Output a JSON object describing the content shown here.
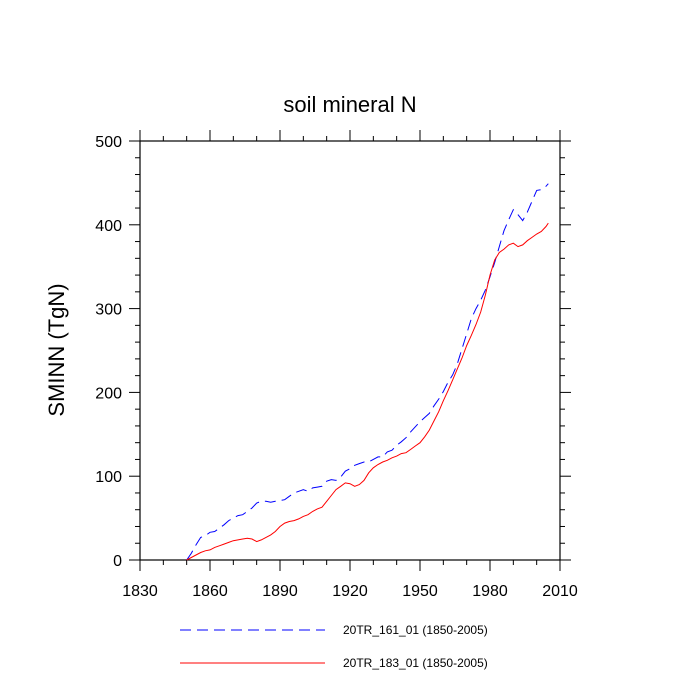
{
  "chart_data": {
    "type": "line",
    "title": "soil mineral N",
    "xlabel": "",
    "ylabel": "SMINN  (TgN)",
    "xlim": [
      1830,
      2010
    ],
    "ylim": [
      0,
      500
    ],
    "xticks": [
      1830,
      1860,
      1890,
      1920,
      1950,
      1980,
      2010
    ],
    "yticks": [
      0,
      100,
      200,
      300,
      400,
      500
    ],
    "series": [
      {
        "name": "20TR_161_01 (1850-2005)",
        "color": "#0000ff",
        "dash": "dashed",
        "x": [
          1850,
          1852,
          1854,
          1856,
          1858,
          1860,
          1862,
          1864,
          1866,
          1868,
          1870,
          1872,
          1874,
          1876,
          1878,
          1880,
          1882,
          1884,
          1886,
          1888,
          1890,
          1892,
          1894,
          1896,
          1898,
          1900,
          1902,
          1904,
          1906,
          1908,
          1910,
          1912,
          1914,
          1916,
          1918,
          1920,
          1922,
          1924,
          1926,
          1928,
          1930,
          1932,
          1934,
          1936,
          1938,
          1940,
          1942,
          1944,
          1946,
          1948,
          1950,
          1952,
          1954,
          1956,
          1958,
          1960,
          1962,
          1964,
          1966,
          1968,
          1970,
          1972,
          1974,
          1976,
          1978,
          1980,
          1982,
          1984,
          1986,
          1988,
          1990,
          1992,
          1994,
          1996,
          1998,
          2000,
          2002,
          2004,
          2005
        ],
        "y": [
          0,
          8,
          18,
          27,
          29,
          33,
          34,
          38,
          42,
          47,
          50,
          53,
          54,
          58,
          62,
          68,
          70,
          70,
          69,
          70,
          71,
          72,
          76,
          80,
          82,
          84,
          82,
          86,
          87,
          88,
          94,
          96,
          95,
          99,
          106,
          109,
          113,
          115,
          117,
          117,
          120,
          123,
          123,
          129,
          131,
          137,
          141,
          146,
          153,
          159,
          165,
          170,
          175,
          184,
          192,
          201,
          212,
          221,
          234,
          252,
          270,
          288,
          300,
          310,
          322,
          338,
          355,
          374,
          393,
          406,
          418,
          412,
          405,
          415,
          428,
          441,
          442,
          446,
          449
        ]
      },
      {
        "name": "20TR_183_01 (1850-2005)",
        "color": "#ff0000",
        "dash": "solid",
        "x": [
          1850,
          1852,
          1854,
          1856,
          1858,
          1860,
          1862,
          1864,
          1866,
          1868,
          1870,
          1872,
          1874,
          1876,
          1878,
          1880,
          1882,
          1884,
          1886,
          1888,
          1890,
          1892,
          1894,
          1896,
          1898,
          1900,
          1902,
          1904,
          1906,
          1908,
          1910,
          1912,
          1914,
          1916,
          1918,
          1920,
          1922,
          1924,
          1926,
          1928,
          1930,
          1932,
          1934,
          1936,
          1938,
          1940,
          1942,
          1944,
          1946,
          1948,
          1950,
          1952,
          1954,
          1956,
          1958,
          1960,
          1962,
          1964,
          1966,
          1968,
          1970,
          1972,
          1974,
          1976,
          1978,
          1980,
          1982,
          1984,
          1986,
          1988,
          1990,
          1992,
          1994,
          1996,
          1998,
          2000,
          2002,
          2004,
          2005
        ],
        "y": [
          0,
          3,
          6,
          9,
          11,
          12,
          15,
          17,
          19,
          21,
          23,
          24,
          25,
          26,
          25,
          22,
          24,
          27,
          30,
          34,
          40,
          44,
          46,
          47,
          49,
          52,
          54,
          58,
          61,
          63,
          70,
          77,
          84,
          88,
          92,
          91,
          88,
          90,
          95,
          104,
          110,
          114,
          117,
          119,
          122,
          124,
          127,
          128,
          132,
          136,
          140,
          147,
          155,
          166,
          177,
          190,
          202,
          215,
          228,
          241,
          256,
          268,
          281,
          296,
          316,
          340,
          358,
          367,
          371,
          376,
          378,
          374,
          376,
          381,
          385,
          389,
          392,
          398,
          402
        ]
      }
    ],
    "legend": [
      "20TR_161_01 (1850-2005)",
      "20TR_183_01 (1850-2005)"
    ]
  }
}
